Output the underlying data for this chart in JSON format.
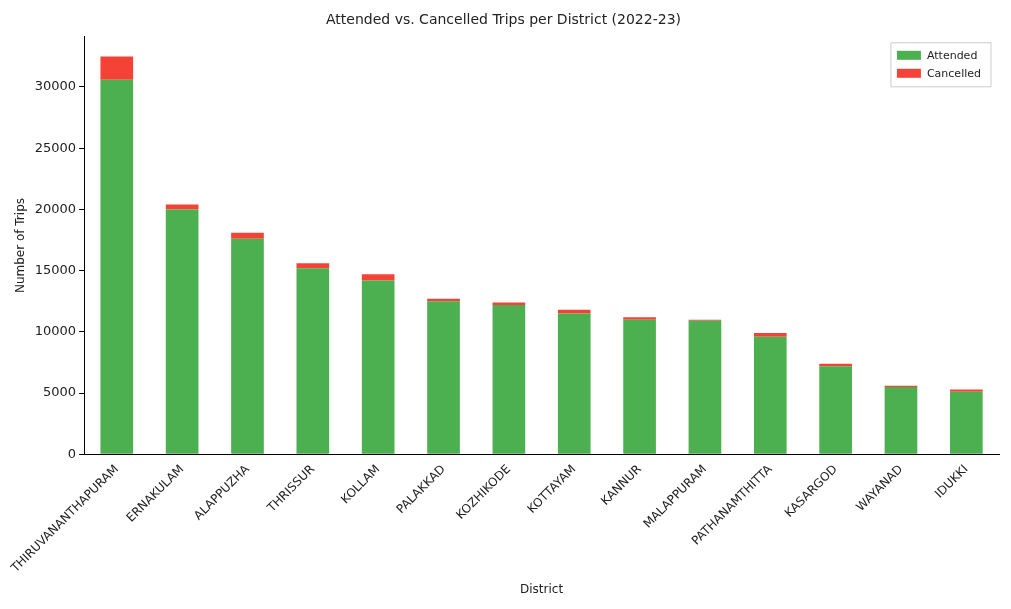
{
  "chart_data": {
    "type": "bar",
    "title": "Attended vs. Cancelled Trips per District (2022-23)",
    "xlabel": "District",
    "ylabel": "Number of Trips",
    "categories": [
      "THIRUVANANTHAPURAM",
      "ERNAKULAM",
      "ALAPPUZHA",
      "THRISSUR",
      "KOLLAM",
      "PALAKKAD",
      "KOZHIKODE",
      "KOTTAYAM",
      "KANNUR",
      "MALAPPURAM",
      "PATHANAMTHITTA",
      "KASARGOD",
      "WAYANAD",
      "IDUKKI"
    ],
    "series": [
      {
        "name": "Attended",
        "color": "#4caf50",
        "values": [
          30600,
          20000,
          17600,
          15200,
          14200,
          12500,
          12200,
          11500,
          11000,
          10900,
          9600,
          7200,
          5500,
          5100
        ]
      },
      {
        "name": "Cancelled",
        "color": "#f44336",
        "values": [
          1900,
          400,
          500,
          400,
          500,
          200,
          200,
          300,
          200,
          100,
          300,
          200,
          100,
          200
        ]
      }
    ],
    "stacked": true,
    "ylim": [
      0,
      34100
    ],
    "yticks": [
      0,
      5000,
      10000,
      15000,
      20000,
      25000,
      30000
    ],
    "grid": false,
    "legend": "top right"
  }
}
